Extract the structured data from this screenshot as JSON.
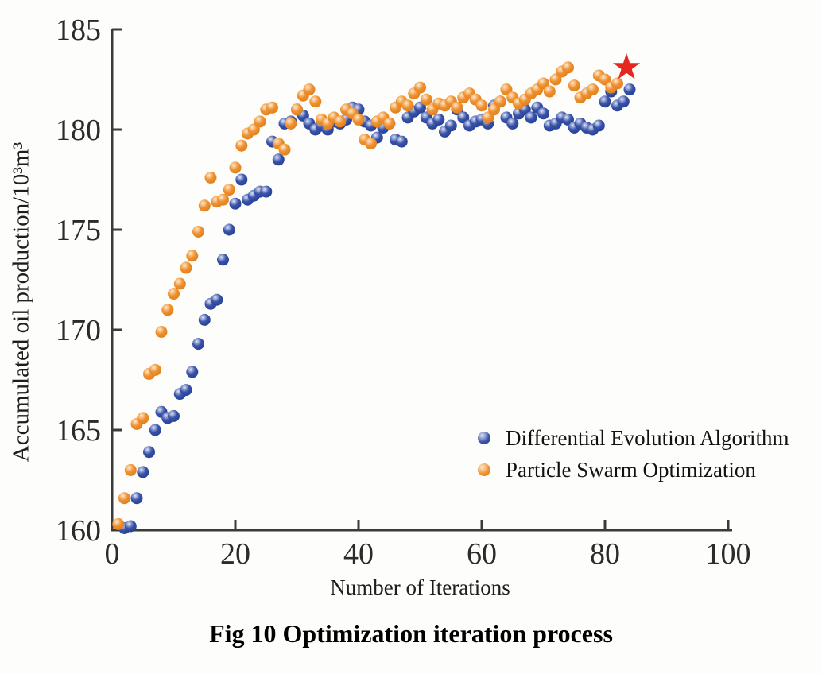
{
  "figure": {
    "caption": "Fig 10 Optimization iteration process"
  },
  "chart_data": {
    "type": "scatter",
    "xlabel": "Number of Iterations",
    "ylabel": "Accumulated oil production/10³m³",
    "xlim": [
      0,
      100
    ],
    "ylim": [
      160,
      185
    ],
    "x_ticks": [
      0,
      20,
      40,
      60,
      80,
      100
    ],
    "y_ticks": [
      160,
      165,
      170,
      175,
      180,
      185
    ],
    "grid": false,
    "legend_position": "inside-right-bottom",
    "axis_color": "#3b3b3b",
    "text_color": "#2b2b2b",
    "series": [
      {
        "name": "Differential Evolution Algorithm",
        "gradient": {
          "highlight": "#dfe5f7",
          "main": "#3a53a8",
          "dark": "#1e3a8f"
        },
        "points": [
          [
            2,
            160.1
          ],
          [
            3,
            160.2
          ],
          [
            4,
            161.6
          ],
          [
            5,
            162.9
          ],
          [
            6,
            163.9
          ],
          [
            7,
            165.0
          ],
          [
            8,
            165.9
          ],
          [
            9,
            165.6
          ],
          [
            10,
            165.7
          ],
          [
            11,
            166.8
          ],
          [
            12,
            167.0
          ],
          [
            13,
            167.9
          ],
          [
            14,
            169.3
          ],
          [
            15,
            170.5
          ],
          [
            16,
            171.3
          ],
          [
            17,
            171.5
          ],
          [
            18,
            173.5
          ],
          [
            19,
            175.0
          ],
          [
            20,
            176.3
          ],
          [
            21,
            177.5
          ],
          [
            22,
            176.5
          ],
          [
            23,
            176.7
          ],
          [
            24,
            176.9
          ],
          [
            25,
            176.9
          ],
          [
            26,
            179.4
          ],
          [
            27,
            178.5
          ],
          [
            28,
            180.3
          ],
          [
            29,
            180.4
          ],
          [
            30,
            181.0
          ],
          [
            31,
            180.7
          ],
          [
            32,
            180.3
          ],
          [
            33,
            180.0
          ],
          [
            34,
            180.2
          ],
          [
            35,
            180.0
          ],
          [
            36,
            180.4
          ],
          [
            37,
            180.3
          ],
          [
            38,
            180.5
          ],
          [
            39,
            181.1
          ],
          [
            40,
            181.0
          ],
          [
            41,
            180.4
          ],
          [
            42,
            180.2
          ],
          [
            43,
            179.6
          ],
          [
            44,
            180.1
          ],
          [
            45,
            180.3
          ],
          [
            46,
            179.5
          ],
          [
            47,
            179.4
          ],
          [
            48,
            180.6
          ],
          [
            49,
            180.9
          ],
          [
            50,
            181.1
          ],
          [
            51,
            180.6
          ],
          [
            52,
            180.3
          ],
          [
            53,
            180.5
          ],
          [
            54,
            179.9
          ],
          [
            55,
            180.2
          ],
          [
            56,
            181.0
          ],
          [
            57,
            180.6
          ],
          [
            58,
            180.2
          ],
          [
            59,
            180.4
          ],
          [
            60,
            180.5
          ],
          [
            61,
            180.3
          ],
          [
            62,
            181.2
          ],
          [
            63,
            181.4
          ],
          [
            64,
            180.6
          ],
          [
            65,
            180.3
          ],
          [
            66,
            180.8
          ],
          [
            67,
            181.0
          ],
          [
            68,
            180.6
          ],
          [
            69,
            181.1
          ],
          [
            70,
            180.8
          ],
          [
            71,
            180.2
          ],
          [
            72,
            180.3
          ],
          [
            73,
            180.6
          ],
          [
            74,
            180.5
          ],
          [
            75,
            180.1
          ],
          [
            76,
            180.3
          ],
          [
            77,
            180.1
          ],
          [
            78,
            180.0
          ],
          [
            79,
            180.2
          ],
          [
            80,
            181.4
          ],
          [
            81,
            181.9
          ],
          [
            82,
            181.2
          ],
          [
            83,
            181.4
          ],
          [
            84,
            182.0
          ]
        ]
      },
      {
        "name": "Particle Swarm Optimization",
        "gradient": {
          "highlight": "#fcebd2",
          "main": "#f0912f",
          "dark": "#d97a16"
        },
        "points": [
          [
            1,
            160.3
          ],
          [
            2,
            161.6
          ],
          [
            3,
            163.0
          ],
          [
            4,
            165.3
          ],
          [
            5,
            165.6
          ],
          [
            6,
            167.8
          ],
          [
            7,
            168.0
          ],
          [
            8,
            169.9
          ],
          [
            9,
            171.0
          ],
          [
            10,
            171.8
          ],
          [
            11,
            172.3
          ],
          [
            12,
            173.1
          ],
          [
            13,
            173.7
          ],
          [
            14,
            174.9
          ],
          [
            15,
            176.2
          ],
          [
            16,
            177.6
          ],
          [
            17,
            176.4
          ],
          [
            18,
            176.5
          ],
          [
            19,
            177.0
          ],
          [
            20,
            178.1
          ],
          [
            21,
            179.2
          ],
          [
            22,
            179.8
          ],
          [
            23,
            180.0
          ],
          [
            24,
            180.4
          ],
          [
            25,
            181.0
          ],
          [
            26,
            181.1
          ],
          [
            27,
            179.3
          ],
          [
            28,
            179.0
          ],
          [
            29,
            180.3
          ],
          [
            30,
            181.0
          ],
          [
            31,
            181.7
          ],
          [
            32,
            182.0
          ],
          [
            33,
            181.4
          ],
          [
            34,
            180.5
          ],
          [
            35,
            180.3
          ],
          [
            36,
            180.6
          ],
          [
            37,
            180.4
          ],
          [
            38,
            181.0
          ],
          [
            39,
            180.8
          ],
          [
            40,
            180.5
          ],
          [
            41,
            179.5
          ],
          [
            42,
            179.3
          ],
          [
            43,
            180.4
          ],
          [
            44,
            180.6
          ],
          [
            45,
            180.3
          ],
          [
            46,
            181.1
          ],
          [
            47,
            181.4
          ],
          [
            48,
            181.2
          ],
          [
            49,
            181.8
          ],
          [
            50,
            182.1
          ],
          [
            51,
            181.5
          ],
          [
            52,
            181.0
          ],
          [
            53,
            181.3
          ],
          [
            54,
            181.2
          ],
          [
            55,
            181.4
          ],
          [
            56,
            181.1
          ],
          [
            57,
            181.6
          ],
          [
            58,
            181.8
          ],
          [
            59,
            181.5
          ],
          [
            60,
            181.2
          ],
          [
            61,
            180.6
          ],
          [
            62,
            181.0
          ],
          [
            63,
            181.4
          ],
          [
            64,
            182.0
          ],
          [
            65,
            181.6
          ],
          [
            66,
            181.3
          ],
          [
            67,
            181.5
          ],
          [
            68,
            181.8
          ],
          [
            69,
            182.0
          ],
          [
            70,
            182.3
          ],
          [
            71,
            181.9
          ],
          [
            72,
            182.5
          ],
          [
            73,
            182.9
          ],
          [
            74,
            183.1
          ],
          [
            75,
            182.2
          ],
          [
            76,
            181.6
          ],
          [
            77,
            181.8
          ],
          [
            78,
            182.0
          ],
          [
            79,
            182.7
          ],
          [
            80,
            182.5
          ],
          [
            81,
            182.1
          ],
          [
            82,
            182.3
          ]
        ]
      }
    ],
    "best_point": {
      "x": 83.5,
      "y": 183.1,
      "marker": "star",
      "color": "#e42820"
    }
  }
}
